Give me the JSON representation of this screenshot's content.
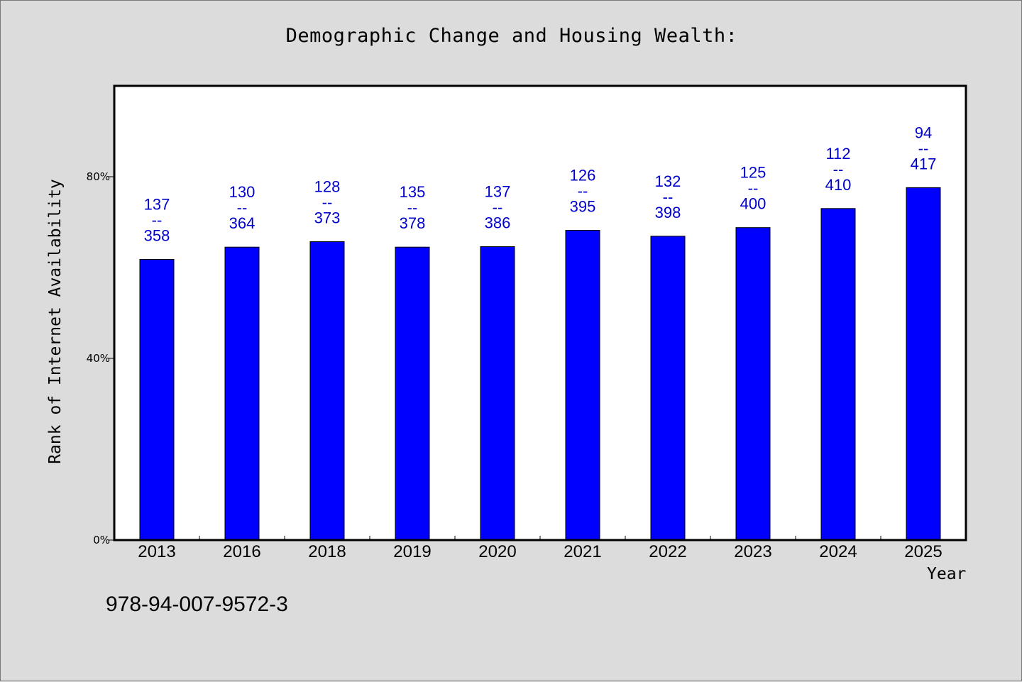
{
  "chart_data": {
    "type": "bar",
    "title": "Demographic Change and Housing Wealth:",
    "xlabel": "Year",
    "ylabel": "Rank of Internet Availability",
    "categories": [
      "2013",
      "2016",
      "2018",
      "2019",
      "2020",
      "2021",
      "2022",
      "2023",
      "2024",
      "2025"
    ],
    "values": [
      61.8,
      64.5,
      65.7,
      64.5,
      64.6,
      68.2,
      66.9,
      68.8,
      73.0,
      77.6
    ],
    "annotations": [
      [
        "137",
        "--",
        "358"
      ],
      [
        "130",
        "--",
        "364"
      ],
      [
        "128",
        "--",
        "373"
      ],
      [
        "135",
        "--",
        "378"
      ],
      [
        "137",
        "--",
        "386"
      ],
      [
        "126",
        "--",
        "395"
      ],
      [
        "132",
        "--",
        "398"
      ],
      [
        "125",
        "--",
        "400"
      ],
      [
        "112",
        "--",
        "410"
      ],
      [
        "94",
        "--",
        "417"
      ]
    ],
    "ylim": [
      0,
      100
    ],
    "yticks": [
      0,
      40,
      80
    ],
    "ytick_labels": [
      "0%",
      "40%",
      "80%"
    ],
    "grid": false,
    "legend": "none",
    "bar_color": "#0000ff",
    "annotation_color": "#0000cc"
  },
  "footnote": "978-94-007-9572-3"
}
